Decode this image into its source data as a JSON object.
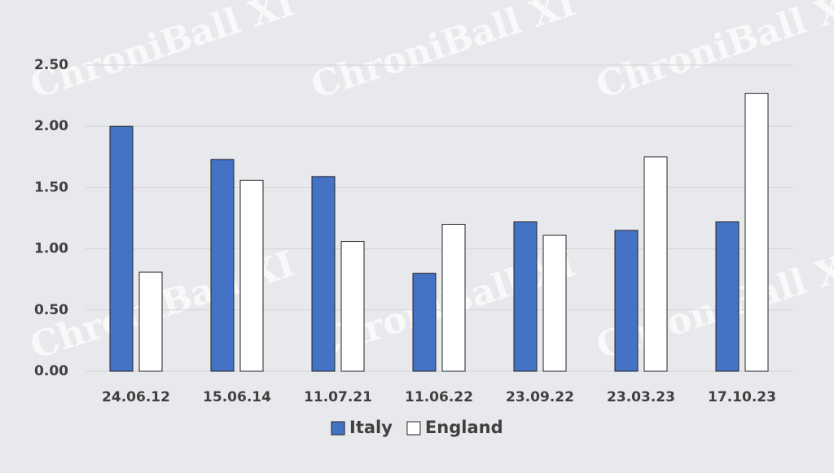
{
  "chart_data": {
    "type": "bar",
    "watermark": "ChroniBall XI",
    "categories": [
      "24.06.12",
      "15.06.14",
      "11.07.21",
      "11.06.22",
      "23.09.22",
      "23.03.23",
      "17.10.23"
    ],
    "series": [
      {
        "name": "Italy",
        "color": "#4472c4",
        "values": [
          2.0,
          1.73,
          1.59,
          0.8,
          1.22,
          1.15,
          1.22
        ]
      },
      {
        "name": "England",
        "color": "#ffffff",
        "values": [
          0.81,
          1.56,
          1.06,
          1.2,
          1.11,
          1.75,
          2.27
        ]
      }
    ],
    "ylim": [
      0,
      2.5
    ],
    "yticks": [
      {
        "value": 0,
        "label": "0.00"
      },
      {
        "value": 0.5,
        "label": "0.50"
      },
      {
        "value": 1,
        "label": "1.00"
      },
      {
        "value": 1.5,
        "label": "1.50"
      },
      {
        "value": 2,
        "label": "2.00"
      },
      {
        "value": 2.5,
        "label": "2.50"
      }
    ],
    "grid": true,
    "legend": "bottom"
  }
}
